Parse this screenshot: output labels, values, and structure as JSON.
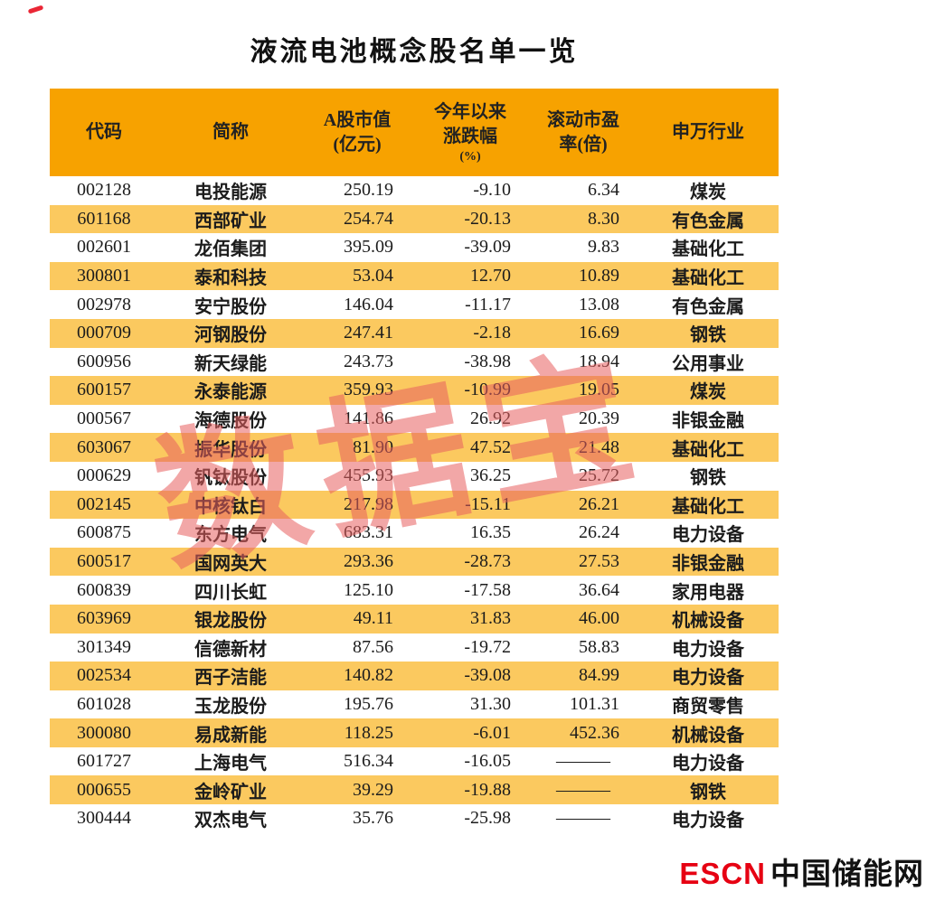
{
  "title": "液流电池概念股名单一览",
  "watermark_text": "数据宝",
  "footer": {
    "escn": "ESCN",
    "site_name": "中国储能网"
  },
  "colors": {
    "header-bg": "#F7A200",
    "stripe-bg": "#FBC95F",
    "watermark-color": "#E86060",
    "escn-red": "#E60012"
  },
  "chart_data": {
    "type": "table",
    "title": "液流电池概念股名单一览",
    "columns": [
      "代码",
      "简称",
      "A股市值(亿元)",
      "今年以来涨跌幅(%)",
      "滚动市盈率(倍)",
      "申万行业"
    ],
    "header_lines": [
      [
        "代码"
      ],
      [
        "简称"
      ],
      [
        "A股市值",
        "(亿元)"
      ],
      [
        "今年以来",
        "涨跌幅",
        "(%)"
      ],
      [
        "滚动市盈",
        "率(倍)"
      ],
      [
        "申万行业"
      ]
    ],
    "rows": [
      [
        "002128",
        "电投能源",
        "250.19",
        "-9.10",
        "6.34",
        "煤炭"
      ],
      [
        "601168",
        "西部矿业",
        "254.74",
        "-20.13",
        "8.30",
        "有色金属"
      ],
      [
        "002601",
        "龙佰集团",
        "395.09",
        "-39.09",
        "9.83",
        "基础化工"
      ],
      [
        "300801",
        "泰和科技",
        "53.04",
        "12.70",
        "10.89",
        "基础化工"
      ],
      [
        "002978",
        "安宁股份",
        "146.04",
        "-11.17",
        "13.08",
        "有色金属"
      ],
      [
        "000709",
        "河钢股份",
        "247.41",
        "-2.18",
        "16.69",
        "钢铁"
      ],
      [
        "600956",
        "新天绿能",
        "243.73",
        "-38.98",
        "18.94",
        "公用事业"
      ],
      [
        "600157",
        "永泰能源",
        "359.93",
        "-10.99",
        "19.05",
        "煤炭"
      ],
      [
        "000567",
        "海德股份",
        "141.86",
        "26.92",
        "20.39",
        "非银金融"
      ],
      [
        "603067",
        "振华股份",
        "81.90",
        "47.52",
        "21.48",
        "基础化工"
      ],
      [
        "000629",
        "钒钛股份",
        "455.93",
        "36.25",
        "25.72",
        "钢铁"
      ],
      [
        "002145",
        "中核钛白",
        "217.98",
        "-15.11",
        "26.21",
        "基础化工"
      ],
      [
        "600875",
        "东方电气",
        "683.31",
        "16.35",
        "26.24",
        "电力设备"
      ],
      [
        "600517",
        "国网英大",
        "293.36",
        "-28.73",
        "27.53",
        "非银金融"
      ],
      [
        "600839",
        "四川长虹",
        "125.10",
        "-17.58",
        "36.64",
        "家用电器"
      ],
      [
        "603969",
        "银龙股份",
        "49.11",
        "31.83",
        "46.00",
        "机械设备"
      ],
      [
        "301349",
        "信德新材",
        "87.56",
        "-19.72",
        "58.83",
        "电力设备"
      ],
      [
        "002534",
        "西子洁能",
        "140.82",
        "-39.08",
        "84.99",
        "电力设备"
      ],
      [
        "601028",
        "玉龙股份",
        "195.76",
        "31.30",
        "101.31",
        "商贸零售"
      ],
      [
        "300080",
        "易成新能",
        "118.25",
        "-6.01",
        "452.36",
        "机械设备"
      ],
      [
        "601727",
        "上海电气",
        "516.34",
        "-16.05",
        "———",
        "电力设备"
      ],
      [
        "000655",
        "金岭矿业",
        "39.29",
        "-19.88",
        "———",
        "钢铁"
      ],
      [
        "300444",
        "双杰电气",
        "35.76",
        "-25.98",
        "———",
        "电力设备"
      ]
    ]
  }
}
